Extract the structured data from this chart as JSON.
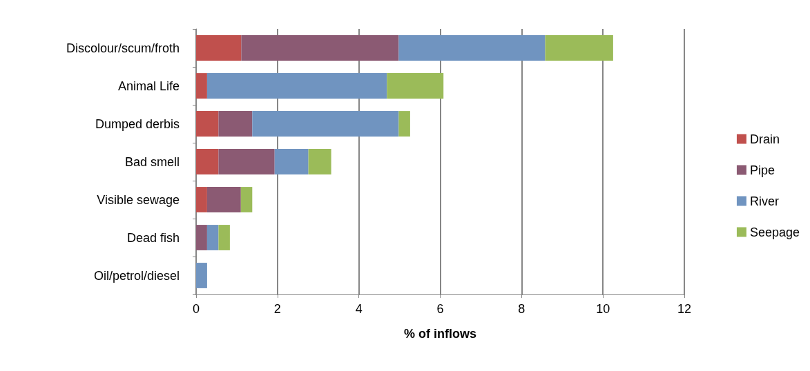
{
  "chart_data": {
    "type": "bar",
    "orientation": "horizontal",
    "stacked": true,
    "xlabel": "% of inflows",
    "categories": [
      "Discolour/scum/froth",
      "Animal Life",
      "Dumped derbis",
      "Bad smell",
      "Visible sewage",
      "Dead fish",
      "Oil/petrol/diesel"
    ],
    "series": [
      {
        "name": "Drain",
        "color": "#c0504d",
        "values": [
          1.11,
          0.27,
          0.55,
          0.55,
          0.27,
          0,
          0
        ]
      },
      {
        "name": "Pipe",
        "color": "#8b5a73",
        "values": [
          3.87,
          0,
          0.83,
          1.38,
          0.83,
          0.27,
          0
        ]
      },
      {
        "name": "River",
        "color": "#7094c0",
        "values": [
          3.6,
          4.42,
          3.6,
          0.83,
          0,
          0.28,
          0.27
        ]
      },
      {
        "name": "Seepage",
        "color": "#9bbb59",
        "values": [
          1.67,
          1.39,
          0.28,
          0.56,
          0.28,
          0.28,
          0
        ]
      }
    ],
    "xlim": [
      0,
      12
    ],
    "xticks": [
      0,
      2,
      4,
      6,
      8,
      10,
      12
    ],
    "grid": "x",
    "legend": "right"
  }
}
